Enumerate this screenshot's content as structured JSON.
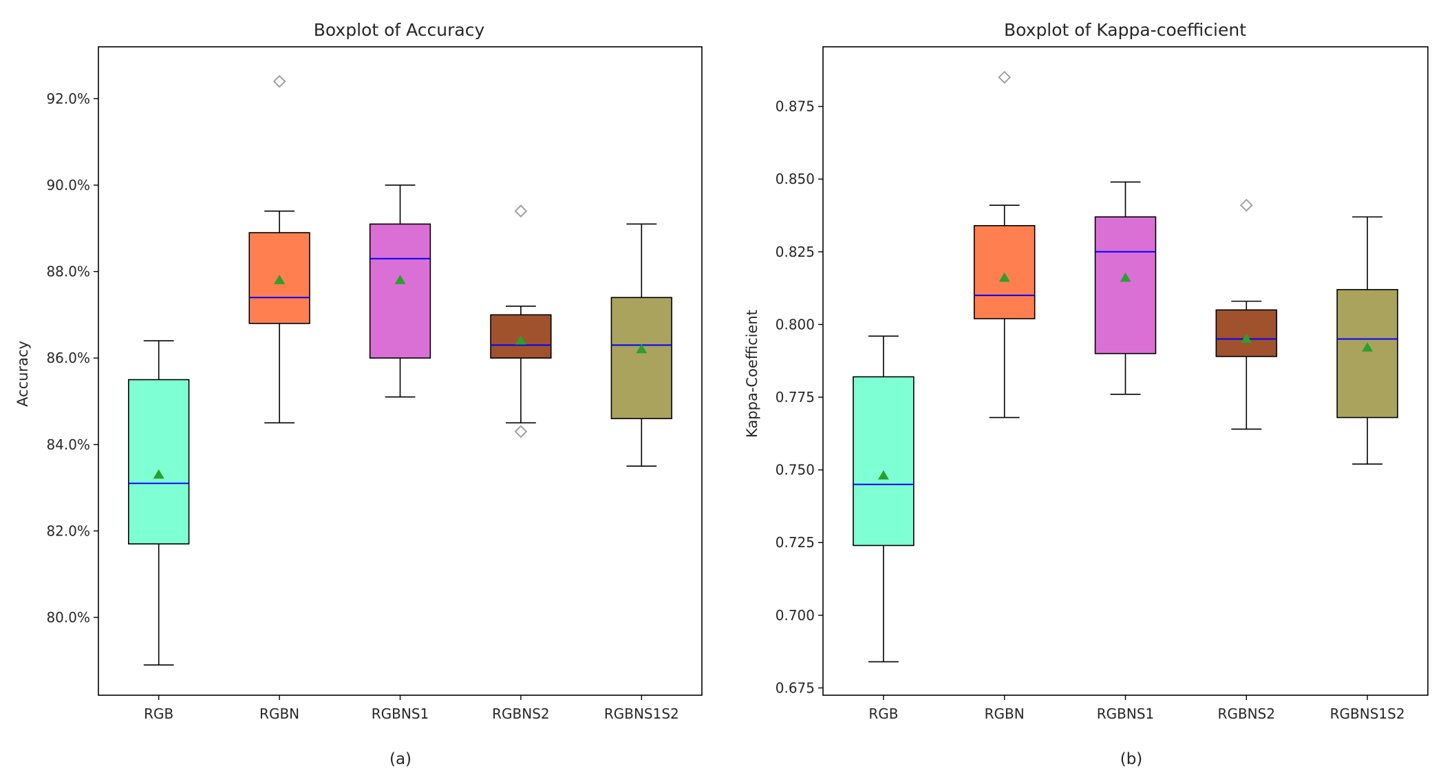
{
  "chart_data": [
    {
      "type": "boxplot",
      "title": "Boxplot of Accuracy",
      "ylabel": "Accuracy",
      "xlabel": "",
      "caption": "(a)",
      "ylim": [
        78.2,
        93.2
      ],
      "yticks": [
        80.0,
        82.0,
        84.0,
        86.0,
        88.0,
        90.0,
        92.0
      ],
      "ytick_labels": [
        "80.0%",
        "82.0%",
        "84.0%",
        "86.0%",
        "88.0%",
        "90.0%",
        "92.0%"
      ],
      "categories": [
        "RGB",
        "RGBN",
        "RGBNS1",
        "RGBNS2",
        "RGBNS1S2"
      ],
      "boxes": [
        {
          "name": "RGB",
          "color": "#7fffd4",
          "whisker_low": 78.9,
          "q1": 81.7,
          "median": 83.1,
          "q3": 85.5,
          "whisker_high": 86.4,
          "mean": 83.3,
          "outliers": []
        },
        {
          "name": "RGBN",
          "color": "#ff7f50",
          "whisker_low": 84.5,
          "q1": 86.8,
          "median": 87.4,
          "q3": 88.9,
          "whisker_high": 89.4,
          "mean": 87.8,
          "outliers": [
            92.4
          ]
        },
        {
          "name": "RGBNS1",
          "color": "#da70d6",
          "whisker_low": 85.1,
          "q1": 86.0,
          "median": 88.3,
          "q3": 89.1,
          "whisker_high": 90.0,
          "mean": 87.8,
          "outliers": []
        },
        {
          "name": "RGBNS2",
          "color": "#a0522d",
          "whisker_low": 84.5,
          "q1": 86.0,
          "median": 86.3,
          "q3": 87.0,
          "whisker_high": 87.2,
          "mean": 86.4,
          "outliers": [
            89.4,
            84.3
          ]
        },
        {
          "name": "RGBNS1S2",
          "color": "#a9a35e",
          "whisker_low": 83.5,
          "q1": 84.6,
          "median": 86.3,
          "q3": 87.4,
          "whisker_high": 89.1,
          "mean": 86.2,
          "outliers": []
        }
      ]
    },
    {
      "type": "boxplot",
      "title": "Boxplot of Kappa-coefficient",
      "ylabel": "Kappa-Coefficient",
      "xlabel": "",
      "caption": "(b)",
      "ylim": [
        0.6725,
        0.8955
      ],
      "yticks": [
        0.675,
        0.7,
        0.725,
        0.75,
        0.775,
        0.8,
        0.825,
        0.85,
        0.875
      ],
      "ytick_labels": [
        "0.675",
        "0.700",
        "0.725",
        "0.750",
        "0.775",
        "0.800",
        "0.825",
        "0.850",
        "0.875"
      ],
      "categories": [
        "RGB",
        "RGBN",
        "RGBNS1",
        "RGBNS2",
        "RGBNS1S2"
      ],
      "boxes": [
        {
          "name": "RGB",
          "color": "#7fffd4",
          "whisker_low": 0.684,
          "q1": 0.724,
          "median": 0.745,
          "q3": 0.782,
          "whisker_high": 0.796,
          "mean": 0.748,
          "outliers": []
        },
        {
          "name": "RGBN",
          "color": "#ff7f50",
          "whisker_low": 0.768,
          "q1": 0.802,
          "median": 0.81,
          "q3": 0.834,
          "whisker_high": 0.841,
          "mean": 0.816,
          "outliers": [
            0.885
          ]
        },
        {
          "name": "RGBNS1",
          "color": "#da70d6",
          "whisker_low": 0.776,
          "q1": 0.79,
          "median": 0.825,
          "q3": 0.837,
          "whisker_high": 0.849,
          "mean": 0.816,
          "outliers": []
        },
        {
          "name": "RGBNS2",
          "color": "#a0522d",
          "whisker_low": 0.764,
          "q1": 0.789,
          "median": 0.795,
          "q3": 0.805,
          "whisker_high": 0.808,
          "mean": 0.795,
          "outliers": [
            0.841
          ]
        },
        {
          "name": "RGBNS1S2",
          "color": "#a9a35e",
          "whisker_low": 0.752,
          "q1": 0.768,
          "median": 0.795,
          "q3": 0.812,
          "whisker_high": 0.837,
          "mean": 0.792,
          "outliers": []
        }
      ]
    }
  ],
  "colors": {
    "median_line": "#0000ff",
    "mean_marker": "#2ca02c",
    "outlier_edge": "#a0a0a0",
    "box_edge": "#000000"
  }
}
